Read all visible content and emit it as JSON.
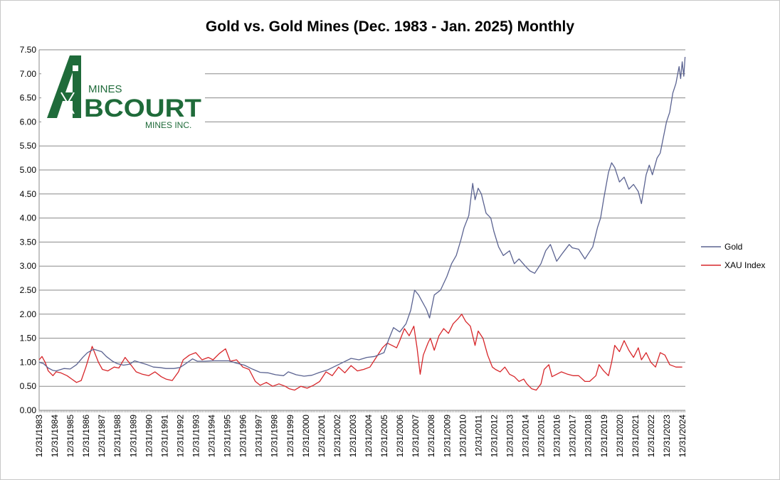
{
  "chart_data": {
    "type": "line",
    "title": "Gold vs. Gold Mines (Dec. 1983 - Jan. 2025) Monthly",
    "xlabel": "",
    "ylabel": "",
    "ylim": [
      0,
      7.5
    ],
    "yticks": [
      "0.00",
      "0.50",
      "1.00",
      "1.50",
      "2.00",
      "2.50",
      "3.00",
      "3.50",
      "4.00",
      "4.50",
      "5.00",
      "5.50",
      "6.00",
      "6.50",
      "7.00",
      "7.50"
    ],
    "x_tick_labels": [
      "12/31/1983",
      "12/31/1984",
      "12/31/1985",
      "12/31/1986",
      "12/31/1987",
      "12/31/1988",
      "12/31/1989",
      "12/31/1990",
      "12/31/1991",
      "12/31/1992",
      "12/31/1993",
      "12/31/1994",
      "12/31/1995",
      "12/31/1996",
      "12/31/1997",
      "12/31/1998",
      "12/31/1999",
      "12/31/2000",
      "12/31/2001",
      "12/31/2002",
      "12/31/2003",
      "12/31/2004",
      "12/31/2005",
      "12/31/2006",
      "12/31/2007",
      "12/31/2008",
      "12/31/2009",
      "12/31/2010",
      "12/31/2011",
      "12/31/2012",
      "12/31/2013",
      "12/31/2014",
      "12/31/2015",
      "12/31/2016",
      "12/31/2017",
      "12/31/2018",
      "12/31/2019",
      "12/31/2020",
      "12/31/2021",
      "12/31/2022",
      "12/31/2023",
      "12/31/2024"
    ],
    "x_range": [
      "12/31/1983",
      "01/31/2025"
    ],
    "grid": "horizontal",
    "legend_position": "right",
    "series": [
      {
        "name": "Gold",
        "color": "#5b6391",
        "x": [
          1983.92,
          1984.2,
          1984.5,
          1984.8,
          1985.0,
          1985.2,
          1985.5,
          1985.9,
          1986.3,
          1986.7,
          1987.0,
          1987.4,
          1987.9,
          1988.2,
          1988.6,
          1988.9,
          1989.3,
          1989.7,
          1990.0,
          1990.4,
          1990.8,
          1991.2,
          1991.6,
          1992.0,
          1992.5,
          1992.9,
          1993.3,
          1993.7,
          1994.0,
          1994.5,
          1995.0,
          1995.5,
          1996.0,
          1996.5,
          1997.0,
          1997.5,
          1998.0,
          1998.5,
          1999.0,
          1999.5,
          1999.8,
          2000.3,
          2000.8,
          2001.3,
          2001.8,
          2002.3,
          2002.8,
          2003.3,
          2003.8,
          2004.3,
          2004.8,
          2005.3,
          2005.9,
          2006.2,
          2006.5,
          2006.9,
          2007.3,
          2007.6,
          2007.85,
          2008.1,
          2008.3,
          2008.6,
          2008.8,
          2009.1,
          2009.5,
          2009.9,
          2010.2,
          2010.5,
          2010.8,
          2011.0,
          2011.3,
          2011.55,
          2011.7,
          2011.9,
          2012.1,
          2012.4,
          2012.7,
          2012.9,
          2013.2,
          2013.5,
          2013.9,
          2014.2,
          2014.5,
          2014.9,
          2015.2,
          2015.5,
          2015.9,
          2016.2,
          2016.5,
          2016.9,
          2017.3,
          2017.7,
          2017.9,
          2018.3,
          2018.7,
          2018.9,
          2019.2,
          2019.5,
          2019.7,
          2019.9,
          2020.2,
          2020.4,
          2020.6,
          2020.9,
          2021.2,
          2021.5,
          2021.8,
          2022.1,
          2022.3,
          2022.6,
          2022.8,
          2023.0,
          2023.3,
          2023.5,
          2023.9,
          2024.1,
          2024.3,
          2024.5,
          2024.7,
          2024.8,
          2024.9,
          2025.0,
          2025.08
        ],
        "values": [
          1.0,
          0.97,
          0.88,
          0.83,
          0.82,
          0.84,
          0.87,
          0.86,
          0.95,
          1.1,
          1.2,
          1.27,
          1.22,
          1.12,
          1.02,
          0.97,
          0.94,
          0.96,
          1.03,
          0.99,
          0.95,
          0.9,
          0.89,
          0.87,
          0.87,
          0.89,
          0.98,
          1.07,
          1.02,
          1.02,
          1.03,
          1.03,
          1.03,
          0.98,
          0.94,
          0.86,
          0.79,
          0.78,
          0.74,
          0.72,
          0.8,
          0.74,
          0.71,
          0.73,
          0.79,
          0.84,
          0.92,
          1.0,
          1.08,
          1.05,
          1.1,
          1.12,
          1.2,
          1.48,
          1.72,
          1.63,
          1.8,
          2.08,
          2.5,
          2.4,
          2.28,
          2.1,
          1.92,
          2.4,
          2.5,
          2.78,
          3.05,
          3.22,
          3.55,
          3.8,
          4.05,
          4.72,
          4.38,
          4.62,
          4.5,
          4.1,
          4.0,
          3.72,
          3.4,
          3.22,
          3.32,
          3.05,
          3.15,
          3.0,
          2.9,
          2.85,
          3.05,
          3.32,
          3.45,
          3.1,
          3.28,
          3.45,
          3.38,
          3.35,
          3.15,
          3.25,
          3.4,
          3.8,
          4.0,
          4.4,
          4.95,
          5.15,
          5.05,
          4.75,
          4.85,
          4.6,
          4.7,
          4.55,
          4.3,
          4.9,
          5.1,
          4.9,
          5.25,
          5.35,
          6.0,
          6.2,
          6.6,
          6.8,
          7.15,
          6.9,
          7.25,
          6.95,
          7.35
        ]
      },
      {
        "name": "XAU Index",
        "color": "#d7262a",
        "x": [
          1983.92,
          1984.1,
          1984.3,
          1984.5,
          1984.8,
          1985.0,
          1985.3,
          1985.7,
          1986.0,
          1986.3,
          1986.6,
          1986.9,
          1987.3,
          1987.7,
          1987.95,
          1988.3,
          1988.7,
          1989.0,
          1989.4,
          1989.8,
          1990.1,
          1990.5,
          1990.9,
          1991.3,
          1991.7,
          1992.0,
          1992.4,
          1992.8,
          1993.1,
          1993.5,
          1993.9,
          1994.3,
          1994.7,
          1995.0,
          1995.4,
          1995.8,
          1996.1,
          1996.5,
          1996.9,
          1997.3,
          1997.7,
          1998.0,
          1998.4,
          1998.8,
          1999.2,
          1999.6,
          1999.85,
          2000.2,
          2000.6,
          2001.0,
          2001.4,
          2001.8,
          2002.2,
          2002.6,
          2003.0,
          2003.4,
          2003.8,
          2004.2,
          2004.6,
          2005.0,
          2005.4,
          2005.8,
          2006.1,
          2006.4,
          2006.7,
          2006.9,
          2007.2,
          2007.5,
          2007.8,
          2008.0,
          2008.2,
          2008.4,
          2008.7,
          2008.85,
          2009.1,
          2009.4,
          2009.7,
          2010.0,
          2010.3,
          2010.6,
          2010.85,
          2011.1,
          2011.4,
          2011.7,
          2011.9,
          2012.2,
          2012.5,
          2012.8,
          2013.0,
          2013.3,
          2013.6,
          2013.9,
          2014.2,
          2014.5,
          2014.8,
          2015.0,
          2015.3,
          2015.6,
          2015.9,
          2016.1,
          2016.4,
          2016.6,
          2016.9,
          2017.2,
          2017.6,
          2017.95,
          2018.3,
          2018.7,
          2019.0,
          2019.4,
          2019.6,
          2019.9,
          2020.2,
          2020.4,
          2020.6,
          2020.9,
          2021.2,
          2021.5,
          2021.8,
          2022.1,
          2022.3,
          2022.6,
          2022.9,
          2023.2,
          2023.5,
          2023.8,
          2024.1,
          2024.5,
          2024.9
        ],
        "values": [
          1.05,
          1.12,
          1.0,
          0.82,
          0.72,
          0.8,
          0.78,
          0.72,
          0.65,
          0.58,
          0.62,
          0.9,
          1.33,
          1.0,
          0.85,
          0.82,
          0.9,
          0.88,
          1.1,
          0.93,
          0.8,
          0.75,
          0.72,
          0.8,
          0.7,
          0.65,
          0.62,
          0.8,
          1.05,
          1.15,
          1.2,
          1.05,
          1.1,
          1.05,
          1.18,
          1.28,
          1.02,
          1.05,
          0.9,
          0.85,
          0.6,
          0.52,
          0.58,
          0.5,
          0.55,
          0.5,
          0.45,
          0.42,
          0.5,
          0.46,
          0.52,
          0.6,
          0.8,
          0.72,
          0.9,
          0.78,
          0.93,
          0.82,
          0.85,
          0.9,
          1.1,
          1.3,
          1.4,
          1.35,
          1.3,
          1.45,
          1.7,
          1.55,
          1.75,
          1.3,
          0.75,
          1.15,
          1.4,
          1.5,
          1.25,
          1.55,
          1.7,
          1.6,
          1.8,
          1.9,
          2.0,
          1.85,
          1.75,
          1.35,
          1.65,
          1.5,
          1.15,
          0.9,
          0.85,
          0.8,
          0.9,
          0.75,
          0.7,
          0.6,
          0.65,
          0.55,
          0.45,
          0.42,
          0.55,
          0.85,
          0.95,
          0.7,
          0.75,
          0.8,
          0.75,
          0.72,
          0.72,
          0.6,
          0.6,
          0.72,
          0.95,
          0.82,
          0.72,
          1.0,
          1.35,
          1.22,
          1.45,
          1.25,
          1.1,
          1.3,
          1.05,
          1.2,
          1.0,
          0.9,
          1.2,
          1.15,
          0.95,
          0.9,
          0.9
        ]
      }
    ]
  },
  "logo": {
    "top_text": "MINES",
    "main_text": "BCOURT",
    "bottom_text": "MINES INC.",
    "letter": "A",
    "color": "#1f6b3a"
  }
}
